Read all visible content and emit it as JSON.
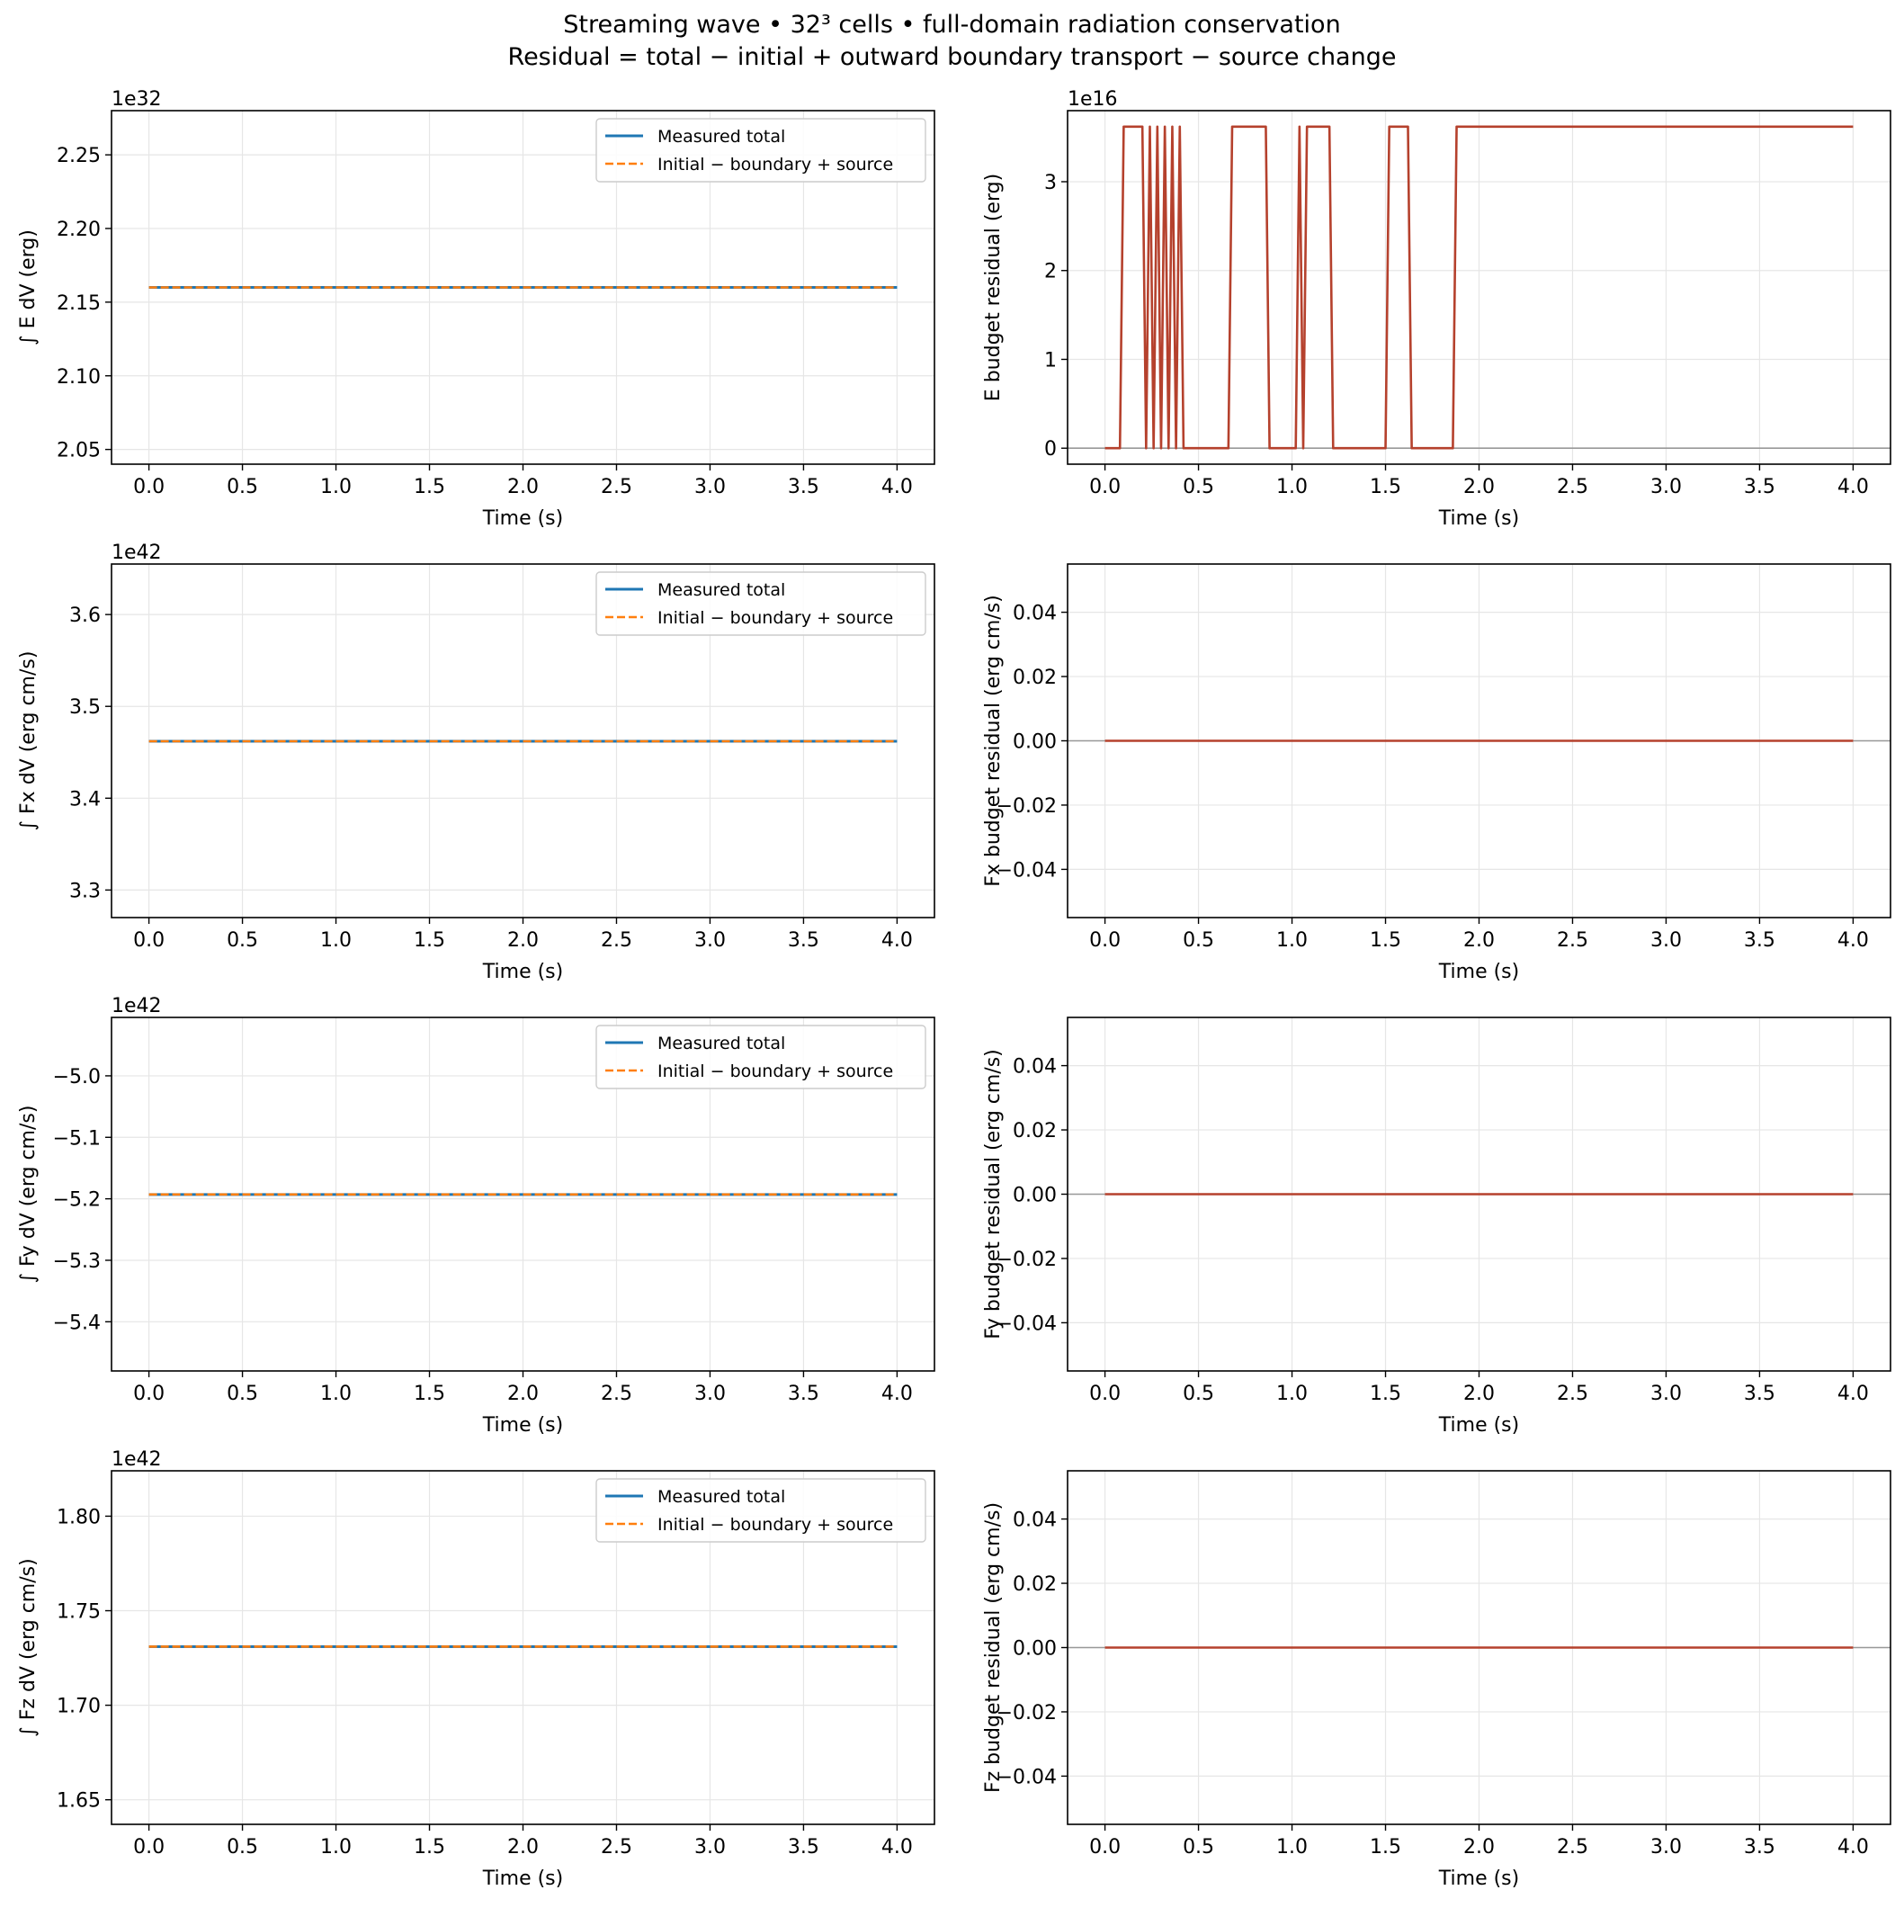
{
  "figure": {
    "title_line1": "Streaming wave • 32³ cells • full-domain radiation conservation",
    "title_line2": "Residual = total − initial + outward boundary transport − source change"
  },
  "colors": {
    "measured": "#1f77b4",
    "predicted": "#ff7f0e",
    "residual": "#b5412d",
    "zero_line": "#999999",
    "grid": "#e6e6e6",
    "axes": "#000000"
  },
  "chart_data": [
    {
      "id": "E-total",
      "type": "line",
      "ylabel": "∫ E dV (erg)",
      "xlabel": "Time (s)",
      "offset_text": "1e32",
      "xlim": [
        -0.2,
        4.2
      ],
      "ylim": [
        2.04,
        2.28
      ],
      "xticks": [
        0.0,
        0.5,
        1.0,
        1.5,
        2.0,
        2.5,
        3.0,
        3.5,
        4.0
      ],
      "xtick_labels": [
        "0.0",
        "0.5",
        "1.0",
        "1.5",
        "2.0",
        "2.5",
        "3.0",
        "3.5",
        "4.0"
      ],
      "yticks": [
        2.05,
        2.1,
        2.15,
        2.2,
        2.25
      ],
      "ytick_labels": [
        "2.05",
        "2.10",
        "2.15",
        "2.20",
        "2.25"
      ],
      "grid": true,
      "legend": "upper right",
      "series": [
        {
          "name": "Measured total",
          "style": "solid",
          "x": [
            0.0,
            4.0
          ],
          "y": [
            2.16,
            2.16
          ]
        },
        {
          "name": "Initial − boundary + source",
          "style": "dashed",
          "x": [
            0.0,
            4.0
          ],
          "y": [
            2.16,
            2.16
          ]
        }
      ]
    },
    {
      "id": "E-residual",
      "type": "line",
      "ylabel": "E budget residual (erg)",
      "xlabel": "Time (s)",
      "offset_text": "1e16",
      "xlim": [
        -0.2,
        4.2
      ],
      "ylim": [
        -0.18,
        3.8
      ],
      "xticks": [
        0.0,
        0.5,
        1.0,
        1.5,
        2.0,
        2.5,
        3.0,
        3.5,
        4.0
      ],
      "xtick_labels": [
        "0.0",
        "0.5",
        "1.0",
        "1.5",
        "2.0",
        "2.5",
        "3.0",
        "3.5",
        "4.0"
      ],
      "yticks": [
        0,
        1,
        2,
        3
      ],
      "ytick_labels": [
        "0",
        "1",
        "2",
        "3"
      ],
      "grid": true,
      "zero_line": true,
      "series": [
        {
          "name": "",
          "style": "solid",
          "x": [
            0.0,
            0.08,
            0.1,
            0.2,
            0.22,
            0.24,
            0.26,
            0.28,
            0.3,
            0.32,
            0.34,
            0.36,
            0.38,
            0.4,
            0.42,
            0.44,
            0.66,
            0.68,
            0.86,
            0.88,
            1.02,
            1.04,
            1.06,
            1.08,
            1.2,
            1.22,
            1.5,
            1.52,
            1.62,
            1.64,
            1.86,
            1.88,
            4.0
          ],
          "y": [
            0,
            0,
            3.62,
            3.62,
            0,
            3.62,
            0,
            3.62,
            0,
            3.62,
            0,
            3.62,
            0,
            3.62,
            0,
            0,
            0,
            3.62,
            3.62,
            0,
            0,
            3.62,
            0,
            3.62,
            3.62,
            0,
            0,
            3.62,
            3.62,
            0,
            0,
            3.62,
            3.62
          ]
        }
      ]
    },
    {
      "id": "Fx-total",
      "type": "line",
      "ylabel": "∫ Fx dV (erg cm/s)",
      "xlabel": "Time (s)",
      "offset_text": "1e42",
      "xlim": [
        -0.2,
        4.2
      ],
      "ylim": [
        3.27,
        3.655
      ],
      "xticks": [
        0.0,
        0.5,
        1.0,
        1.5,
        2.0,
        2.5,
        3.0,
        3.5,
        4.0
      ],
      "xtick_labels": [
        "0.0",
        "0.5",
        "1.0",
        "1.5",
        "2.0",
        "2.5",
        "3.0",
        "3.5",
        "4.0"
      ],
      "yticks": [
        3.3,
        3.4,
        3.5,
        3.6
      ],
      "ytick_labels": [
        "3.3",
        "3.4",
        "3.5",
        "3.6"
      ],
      "grid": true,
      "legend": "upper right",
      "series": [
        {
          "name": "Measured total",
          "style": "solid",
          "x": [
            0.0,
            4.0
          ],
          "y": [
            3.462,
            3.462
          ]
        },
        {
          "name": "Initial − boundary + source",
          "style": "dashed",
          "x": [
            0.0,
            4.0
          ],
          "y": [
            3.462,
            3.462
          ]
        }
      ]
    },
    {
      "id": "Fx-residual",
      "type": "line",
      "ylabel": "Fx budget residual (erg cm/s)",
      "xlabel": "Time (s)",
      "offset_text": "",
      "xlim": [
        -0.2,
        4.2
      ],
      "ylim": [
        -0.055,
        0.055
      ],
      "xticks": [
        0.0,
        0.5,
        1.0,
        1.5,
        2.0,
        2.5,
        3.0,
        3.5,
        4.0
      ],
      "xtick_labels": [
        "0.0",
        "0.5",
        "1.0",
        "1.5",
        "2.0",
        "2.5",
        "3.0",
        "3.5",
        "4.0"
      ],
      "yticks": [
        -0.04,
        -0.02,
        0.0,
        0.02,
        0.04
      ],
      "ytick_labels": [
        "−0.04",
        "−0.02",
        "0.00",
        "0.02",
        "0.04"
      ],
      "grid": true,
      "zero_line": true,
      "series": [
        {
          "name": "",
          "style": "solid",
          "x": [
            0.0,
            4.0
          ],
          "y": [
            0.0,
            0.0
          ]
        }
      ]
    },
    {
      "id": "Fy-total",
      "type": "line",
      "ylabel": "∫ Fy dV (erg cm/s)",
      "xlabel": "Time (s)",
      "offset_text": "1e42",
      "xlim": [
        -0.2,
        4.2
      ],
      "ylim": [
        -5.48,
        -4.905
      ],
      "xticks": [
        0.0,
        0.5,
        1.0,
        1.5,
        2.0,
        2.5,
        3.0,
        3.5,
        4.0
      ],
      "xtick_labels": [
        "0.0",
        "0.5",
        "1.0",
        "1.5",
        "2.0",
        "2.5",
        "3.0",
        "3.5",
        "4.0"
      ],
      "yticks": [
        -5.4,
        -5.3,
        -5.2,
        -5.1,
        -5.0
      ],
      "ytick_labels": [
        "−5.4",
        "−5.3",
        "−5.2",
        "−5.1",
        "−5.0"
      ],
      "grid": true,
      "legend": "upper right",
      "series": [
        {
          "name": "Measured total",
          "style": "solid",
          "x": [
            0.0,
            4.0
          ],
          "y": [
            -5.193,
            -5.193
          ]
        },
        {
          "name": "Initial − boundary + source",
          "style": "dashed",
          "x": [
            0.0,
            4.0
          ],
          "y": [
            -5.193,
            -5.193
          ]
        }
      ]
    },
    {
      "id": "Fy-residual",
      "type": "line",
      "ylabel": "Fy budget residual (erg cm/s)",
      "xlabel": "Time (s)",
      "offset_text": "",
      "xlim": [
        -0.2,
        4.2
      ],
      "ylim": [
        -0.055,
        0.055
      ],
      "xticks": [
        0.0,
        0.5,
        1.0,
        1.5,
        2.0,
        2.5,
        3.0,
        3.5,
        4.0
      ],
      "xtick_labels": [
        "0.0",
        "0.5",
        "1.0",
        "1.5",
        "2.0",
        "2.5",
        "3.0",
        "3.5",
        "4.0"
      ],
      "yticks": [
        -0.04,
        -0.02,
        0.0,
        0.02,
        0.04
      ],
      "ytick_labels": [
        "−0.04",
        "−0.02",
        "0.00",
        "0.02",
        "0.04"
      ],
      "grid": true,
      "zero_line": true,
      "series": [
        {
          "name": "",
          "style": "solid",
          "x": [
            0.0,
            4.0
          ],
          "y": [
            0.0,
            0.0
          ]
        }
      ]
    },
    {
      "id": "Fz-total",
      "type": "line",
      "ylabel": "∫ Fz dV (erg cm/s)",
      "xlabel": "Time (s)",
      "offset_text": "1e42",
      "xlim": [
        -0.2,
        4.2
      ],
      "ylim": [
        1.637,
        1.824
      ],
      "xticks": [
        0.0,
        0.5,
        1.0,
        1.5,
        2.0,
        2.5,
        3.0,
        3.5,
        4.0
      ],
      "xtick_labels": [
        "0.0",
        "0.5",
        "1.0",
        "1.5",
        "2.0",
        "2.5",
        "3.0",
        "3.5",
        "4.0"
      ],
      "yticks": [
        1.65,
        1.7,
        1.75,
        1.8
      ],
      "ytick_labels": [
        "1.65",
        "1.70",
        "1.75",
        "1.80"
      ],
      "grid": true,
      "legend": "upper right",
      "series": [
        {
          "name": "Measured total",
          "style": "solid",
          "x": [
            0.0,
            4.0
          ],
          "y": [
            1.731,
            1.731
          ]
        },
        {
          "name": "Initial − boundary + source",
          "style": "dashed",
          "x": [
            0.0,
            4.0
          ],
          "y": [
            1.731,
            1.731
          ]
        }
      ]
    },
    {
      "id": "Fz-residual",
      "type": "line",
      "ylabel": "Fz budget residual (erg cm/s)",
      "xlabel": "Time (s)",
      "offset_text": "",
      "xlim": [
        -0.2,
        4.2
      ],
      "ylim": [
        -0.055,
        0.055
      ],
      "xticks": [
        0.0,
        0.5,
        1.0,
        1.5,
        2.0,
        2.5,
        3.0,
        3.5,
        4.0
      ],
      "xtick_labels": [
        "0.0",
        "0.5",
        "1.0",
        "1.5",
        "2.0",
        "2.5",
        "3.0",
        "3.5",
        "4.0"
      ],
      "yticks": [
        -0.04,
        -0.02,
        0.0,
        0.02,
        0.04
      ],
      "ytick_labels": [
        "−0.04",
        "−0.02",
        "0.00",
        "0.02",
        "0.04"
      ],
      "grid": true,
      "zero_line": true,
      "series": [
        {
          "name": "",
          "style": "solid",
          "x": [
            0.0,
            4.0
          ],
          "y": [
            0.0,
            0.0
          ]
        }
      ]
    }
  ]
}
